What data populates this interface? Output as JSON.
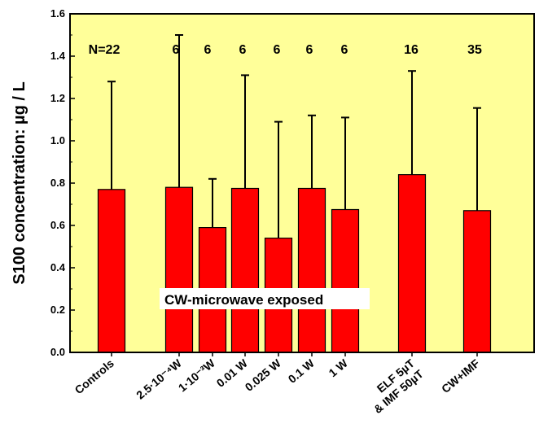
{
  "chart_data": {
    "type": "bar",
    "ylabel": "S100 concentration: µg / L",
    "ylim": [
      0.0,
      1.6
    ],
    "yticks": [
      "0.0",
      "0.2",
      "0.4",
      "0.6",
      "0.8",
      "1.0",
      "1.2",
      "1.4",
      "1.6"
    ],
    "grid": false,
    "plot_background": "#ffff99",
    "bar_color": "#ff0000",
    "categories": [
      {
        "label": "Controls",
        "value": 0.77,
        "error_top": 1.28,
        "n": "N=22"
      },
      {
        "label": "2.5·10⁻⁴W",
        "value": 0.78,
        "error_top": 1.5,
        "n": "6"
      },
      {
        "label": "1·10⁻³W",
        "value": 0.59,
        "error_top": 0.82,
        "n": "6"
      },
      {
        "label": "0.01 W",
        "value": 0.775,
        "error_top": 1.31,
        "n": "6"
      },
      {
        "label": "0.025 W",
        "value": 0.54,
        "error_top": 1.09,
        "n": "6"
      },
      {
        "label": "0.1 W",
        "value": 0.775,
        "error_top": 1.12,
        "n": "6"
      },
      {
        "label": "1 W",
        "value": 0.675,
        "error_top": 1.11,
        "n": "6"
      },
      {
        "label": "ELF 5µT\n& IMF 50µT",
        "value": 0.84,
        "error_top": 1.33,
        "n": "16"
      },
      {
        "label": "CW+IMF",
        "value": 0.67,
        "error_top": 1.155,
        "n": "35"
      }
    ],
    "annotations": [
      {
        "text": "CW-microwave exposed"
      }
    ]
  }
}
